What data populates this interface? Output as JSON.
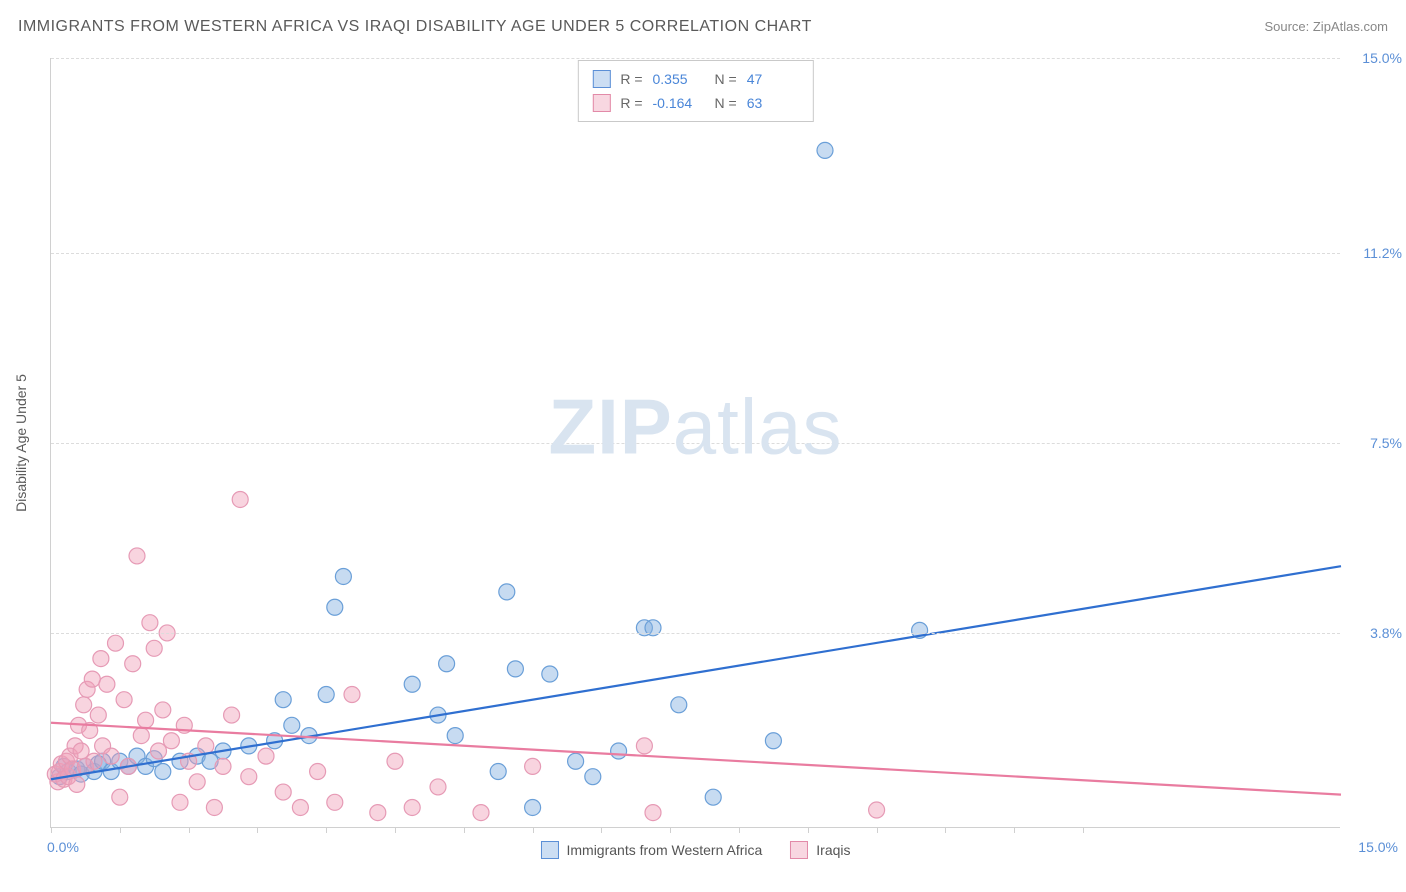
{
  "title": "IMMIGRANTS FROM WESTERN AFRICA VS IRAQI DISABILITY AGE UNDER 5 CORRELATION CHART",
  "source": "Source: ZipAtlas.com",
  "watermark_bold": "ZIP",
  "watermark_rest": "atlas",
  "chart": {
    "type": "scatter",
    "xlim": [
      0,
      15
    ],
    "ylim": [
      0,
      15
    ],
    "xtick_positions": [
      0,
      0.8,
      1.6,
      2.4,
      3.2,
      4.0,
      4.8,
      5.6,
      6.4,
      7.2,
      8.0,
      8.8,
      9.6,
      10.4,
      11.2,
      12.0
    ],
    "xtick_labels": {
      "0": "0.0%",
      "15": "15.0%"
    },
    "ytick_values": [
      3.8,
      7.5,
      11.2,
      15.0
    ],
    "ytick_labels": [
      "3.8%",
      "7.5%",
      "11.2%",
      "15.0%"
    ],
    "y_axis_title": "Disability Age Under 5",
    "grid_color": "#dcdcdc",
    "background_color": "#ffffff",
    "marker_radius": 8,
    "series": [
      {
        "name": "Immigrants from Western Africa",
        "color_fill": "rgba(130,175,225,0.45)",
        "color_stroke": "#6a9fd8",
        "reg_color": "#2f6fd0",
        "R": "0.355",
        "N": "47",
        "regression": {
          "x1": 0,
          "y1": 0.95,
          "x2": 15,
          "y2": 5.1
        },
        "points": [
          [
            0.1,
            1.0
          ],
          [
            0.15,
            1.2
          ],
          [
            0.2,
            1.1
          ],
          [
            0.3,
            1.15
          ],
          [
            0.35,
            1.05
          ],
          [
            0.4,
            1.2
          ],
          [
            0.5,
            1.1
          ],
          [
            0.55,
            1.25
          ],
          [
            0.6,
            1.3
          ],
          [
            0.7,
            1.1
          ],
          [
            0.8,
            1.3
          ],
          [
            0.9,
            1.2
          ],
          [
            1.0,
            1.4
          ],
          [
            1.1,
            1.2
          ],
          [
            1.2,
            1.35
          ],
          [
            1.3,
            1.1
          ],
          [
            1.5,
            1.3
          ],
          [
            1.7,
            1.4
          ],
          [
            1.85,
            1.3
          ],
          [
            2.0,
            1.5
          ],
          [
            2.3,
            1.6
          ],
          [
            2.6,
            1.7
          ],
          [
            2.7,
            2.5
          ],
          [
            2.8,
            2.0
          ],
          [
            3.0,
            1.8
          ],
          [
            3.2,
            2.6
          ],
          [
            3.3,
            4.3
          ],
          [
            3.4,
            4.9
          ],
          [
            4.2,
            2.8
          ],
          [
            4.5,
            2.2
          ],
          [
            4.6,
            3.2
          ],
          [
            4.7,
            1.8
          ],
          [
            5.2,
            1.1
          ],
          [
            5.3,
            4.6
          ],
          [
            5.4,
            3.1
          ],
          [
            5.6,
            0.4
          ],
          [
            5.8,
            3.0
          ],
          [
            6.1,
            1.3
          ],
          [
            6.3,
            1.0
          ],
          [
            6.6,
            1.5
          ],
          [
            6.9,
            3.9
          ],
          [
            7.0,
            3.9
          ],
          [
            7.3,
            2.4
          ],
          [
            7.7,
            0.6
          ],
          [
            8.4,
            1.7
          ],
          [
            9.0,
            13.2
          ],
          [
            10.1,
            3.85
          ]
        ]
      },
      {
        "name": "Iraqis",
        "color_fill": "rgba(240,160,185,0.45)",
        "color_stroke": "#e69ab5",
        "reg_color": "#e97ca0",
        "R": "-0.164",
        "N": "63",
        "regression": {
          "x1": 0,
          "y1": 2.05,
          "x2": 15,
          "y2": 0.65
        },
        "points": [
          [
            0.05,
            1.05
          ],
          [
            0.08,
            0.9
          ],
          [
            0.1,
            1.1
          ],
          [
            0.12,
            1.25
          ],
          [
            0.15,
            0.95
          ],
          [
            0.18,
            1.3
          ],
          [
            0.2,
            1.0
          ],
          [
            0.22,
            1.4
          ],
          [
            0.25,
            1.15
          ],
          [
            0.28,
            1.6
          ],
          [
            0.3,
            0.85
          ],
          [
            0.32,
            2.0
          ],
          [
            0.35,
            1.5
          ],
          [
            0.38,
            2.4
          ],
          [
            0.4,
            1.2
          ],
          [
            0.42,
            2.7
          ],
          [
            0.45,
            1.9
          ],
          [
            0.48,
            2.9
          ],
          [
            0.5,
            1.3
          ],
          [
            0.55,
            2.2
          ],
          [
            0.58,
            3.3
          ],
          [
            0.6,
            1.6
          ],
          [
            0.65,
            2.8
          ],
          [
            0.7,
            1.4
          ],
          [
            0.75,
            3.6
          ],
          [
            0.8,
            0.6
          ],
          [
            0.85,
            2.5
          ],
          [
            0.9,
            1.2
          ],
          [
            0.95,
            3.2
          ],
          [
            1.0,
            5.3
          ],
          [
            1.05,
            1.8
          ],
          [
            1.1,
            2.1
          ],
          [
            1.15,
            4.0
          ],
          [
            1.2,
            3.5
          ],
          [
            1.25,
            1.5
          ],
          [
            1.3,
            2.3
          ],
          [
            1.35,
            3.8
          ],
          [
            1.4,
            1.7
          ],
          [
            1.5,
            0.5
          ],
          [
            1.55,
            2.0
          ],
          [
            1.6,
            1.3
          ],
          [
            1.7,
            0.9
          ],
          [
            1.8,
            1.6
          ],
          [
            1.9,
            0.4
          ],
          [
            2.0,
            1.2
          ],
          [
            2.1,
            2.2
          ],
          [
            2.2,
            6.4
          ],
          [
            2.3,
            1.0
          ],
          [
            2.5,
            1.4
          ],
          [
            2.7,
            0.7
          ],
          [
            2.9,
            0.4
          ],
          [
            3.1,
            1.1
          ],
          [
            3.3,
            0.5
          ],
          [
            3.5,
            2.6
          ],
          [
            3.8,
            0.3
          ],
          [
            4.0,
            1.3
          ],
          [
            4.2,
            0.4
          ],
          [
            4.5,
            0.8
          ],
          [
            5.0,
            0.3
          ],
          [
            5.6,
            1.2
          ],
          [
            6.9,
            1.6
          ],
          [
            7.0,
            0.3
          ],
          [
            9.6,
            0.35
          ]
        ]
      }
    ],
    "top_legend": {
      "r_label": "R =",
      "n_label": "N ="
    },
    "bottom_legend": [
      {
        "color": "blue",
        "label": "Immigrants from Western Africa"
      },
      {
        "color": "pink",
        "label": "Iraqis"
      }
    ]
  }
}
